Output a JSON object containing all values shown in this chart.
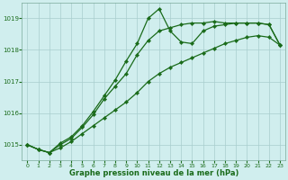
{
  "line1_x": [
    0,
    1,
    2,
    3,
    4,
    5,
    6,
    7,
    8,
    9,
    10,
    11,
    12,
    13,
    14,
    15,
    16,
    17,
    18,
    19,
    20,
    21,
    22,
    23
  ],
  "line1_y": [
    1015.0,
    1014.85,
    1014.75,
    1014.9,
    1015.1,
    1015.35,
    1015.6,
    1015.85,
    1016.1,
    1016.35,
    1016.65,
    1017.0,
    1017.25,
    1017.45,
    1017.6,
    1017.75,
    1017.9,
    1018.05,
    1018.2,
    1018.3,
    1018.4,
    1018.45,
    1018.4,
    1018.15
  ],
  "line2_x": [
    0,
    1,
    2,
    3,
    4,
    5,
    6,
    7,
    8,
    9,
    10,
    11,
    12,
    13,
    14,
    15,
    16,
    17,
    18,
    19,
    20,
    21,
    22,
    23
  ],
  "line2_y": [
    1015.0,
    1014.85,
    1014.75,
    1015.05,
    1015.25,
    1015.6,
    1016.05,
    1016.55,
    1017.05,
    1017.65,
    1018.2,
    1019.0,
    1019.3,
    1018.6,
    1018.25,
    1018.2,
    1018.6,
    1018.75,
    1018.8,
    1018.85,
    1018.85,
    1018.85,
    1018.8,
    1018.15
  ],
  "line3_x": [
    0,
    1,
    2,
    3,
    4,
    5,
    6,
    7,
    8,
    9,
    10,
    11,
    12,
    13,
    14,
    15,
    16,
    17,
    18,
    19,
    20,
    21,
    22,
    23
  ],
  "line3_y": [
    1015.0,
    1014.85,
    1014.75,
    1015.0,
    1015.2,
    1015.55,
    1015.95,
    1016.45,
    1016.85,
    1017.25,
    1017.85,
    1018.3,
    1018.6,
    1018.7,
    1018.8,
    1018.85,
    1018.85,
    1018.9,
    1018.85,
    1018.85,
    1018.85,
    1018.85,
    1018.8,
    1018.15
  ],
  "line_color": "#1a6b1a",
  "bg_color": "#d0eeee",
  "grid_color": "#a8cece",
  "xlabel": "Graphe pression niveau de la mer (hPa)",
  "ylim": [
    1014.5,
    1019.5
  ],
  "xlim": [
    -0.5,
    23.5
  ],
  "yticks": [
    1015,
    1016,
    1017,
    1018,
    1019
  ],
  "xticks": [
    0,
    1,
    2,
    3,
    4,
    5,
    6,
    7,
    8,
    9,
    10,
    11,
    12,
    13,
    14,
    15,
    16,
    17,
    18,
    19,
    20,
    21,
    22,
    23
  ]
}
